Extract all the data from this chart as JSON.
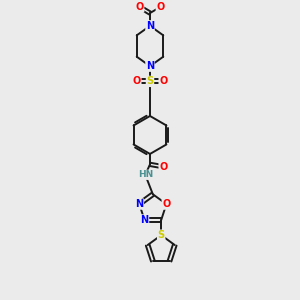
{
  "bg_color": "#ebebeb",
  "atom_colors": {
    "C": "#000000",
    "N": "#0000ff",
    "O": "#ff0000",
    "S_sulfone": "#cccc00",
    "S_thio": "#cccc00",
    "H": "#4a9090"
  },
  "bond_color": "#1a1a1a",
  "figsize": [
    3.0,
    3.0
  ],
  "dpi": 100,
  "xlim": [
    -0.7,
    0.7
  ],
  "ylim": [
    -4.2,
    2.0
  ]
}
